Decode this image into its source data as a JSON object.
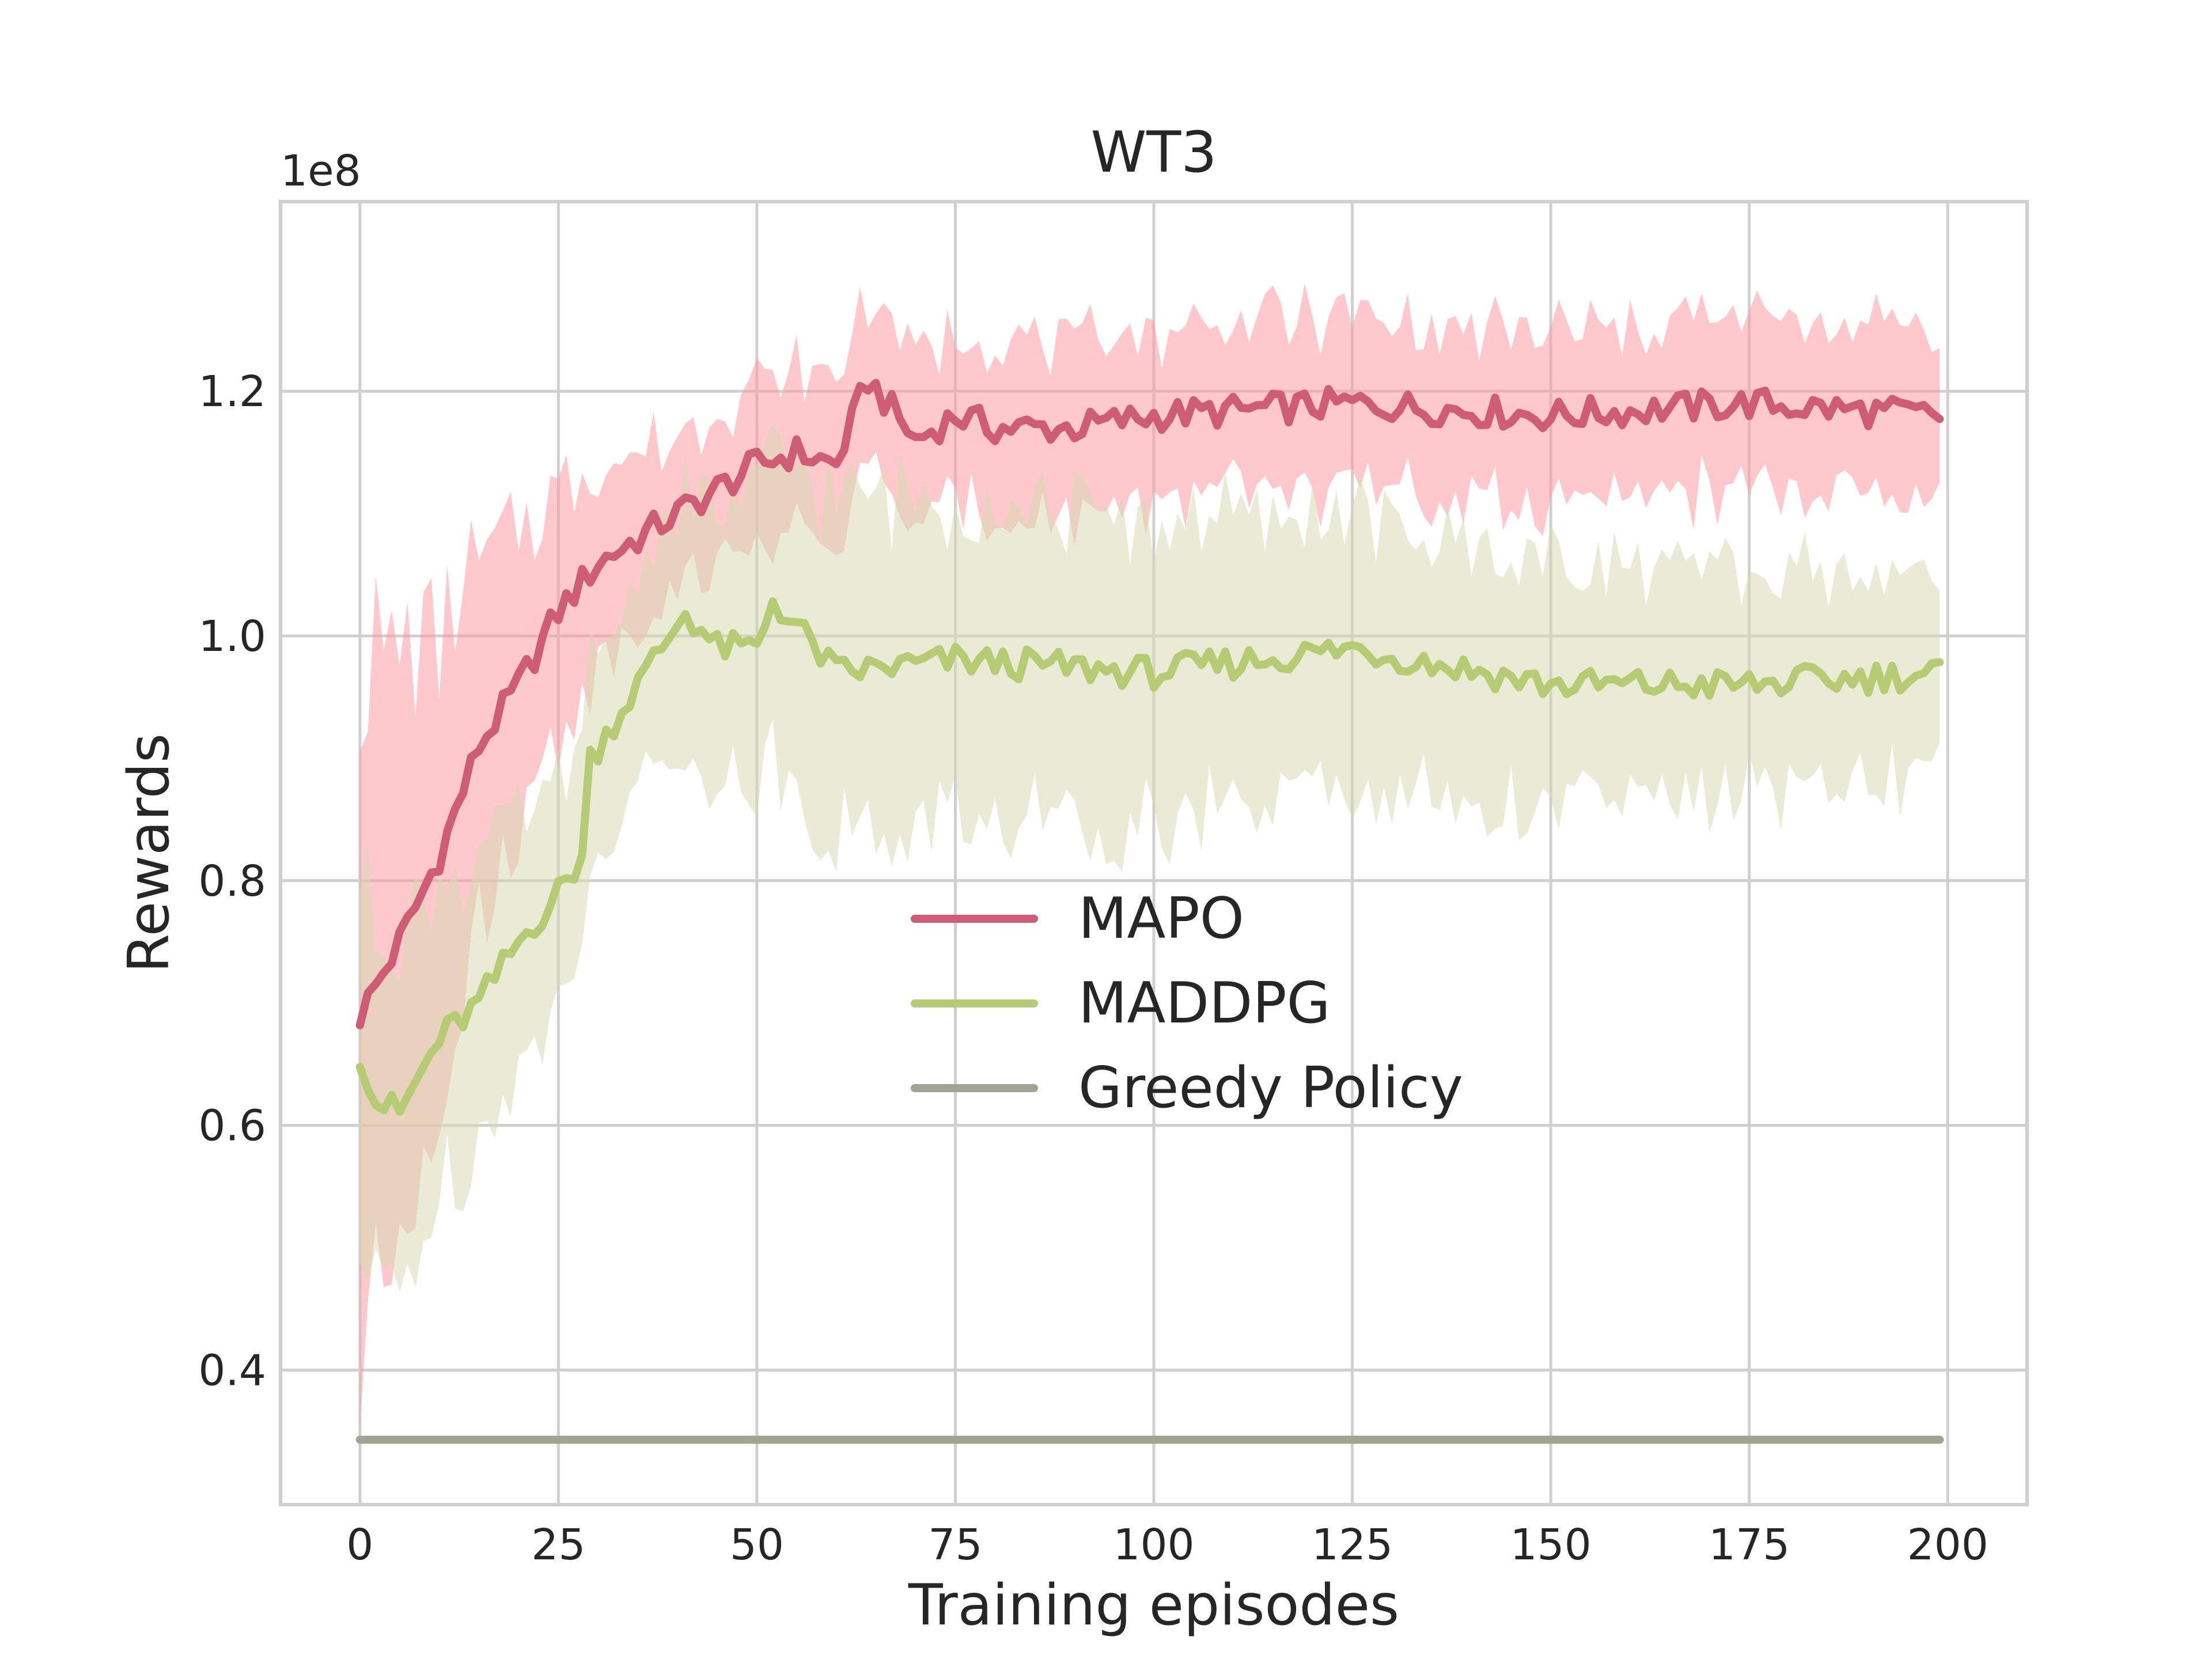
{
  "chart_data": {
    "type": "line",
    "title": "WT3",
    "xlabel": "Training episodes",
    "ylabel": "Rewards",
    "y_scale_label": "1e8",
    "xlim": [
      -10,
      210
    ],
    "ylim": [
      0.29,
      1.355
    ],
    "xticks": [
      0,
      25,
      50,
      75,
      100,
      125,
      150,
      175,
      200
    ],
    "yticks": [
      0.4,
      0.6,
      0.8,
      1.0,
      1.2
    ],
    "ytick_labels": [
      "0.4",
      "0.6",
      "0.8",
      "1.0",
      "1.2"
    ],
    "grid": true,
    "legend_position": "center",
    "series": [
      {
        "name": "MAPO",
        "color": "#cd5c74",
        "band_color": "#ff9aa2",
        "points": [
          [
            0,
            0.69
          ],
          [
            5,
            0.75
          ],
          [
            10,
            0.82
          ],
          [
            15,
            0.91
          ],
          [
            20,
            0.96
          ],
          [
            25,
            1.02
          ],
          [
            30,
            1.06
          ],
          [
            35,
            1.08
          ],
          [
            40,
            1.1
          ],
          [
            45,
            1.12
          ],
          [
            50,
            1.14
          ],
          [
            55,
            1.15
          ],
          [
            60,
            1.14
          ],
          [
            64,
            1.21
          ],
          [
            70,
            1.16
          ],
          [
            75,
            1.18
          ],
          [
            80,
            1.17
          ],
          [
            90,
            1.17
          ],
          [
            100,
            1.18
          ],
          [
            125,
            1.19
          ],
          [
            150,
            1.18
          ],
          [
            175,
            1.19
          ],
          [
            199,
            1.18
          ]
        ],
        "band_halfwidth": [
          [
            0,
            0.29
          ],
          [
            10,
            0.18
          ],
          [
            20,
            0.12
          ],
          [
            30,
            0.08
          ],
          [
            40,
            0.06
          ],
          [
            60,
            0.07
          ],
          [
            100,
            0.07
          ],
          [
            150,
            0.07
          ],
          [
            199,
            0.07
          ]
        ]
      },
      {
        "name": "MADDPG",
        "color": "#b5cc74",
        "band_color": "#d7dab0",
        "points": [
          [
            0,
            0.66
          ],
          [
            2,
            0.62
          ],
          [
            5,
            0.61
          ],
          [
            10,
            0.67
          ],
          [
            15,
            0.7
          ],
          [
            20,
            0.75
          ],
          [
            25,
            0.79
          ],
          [
            28,
            0.82
          ],
          [
            29,
            0.9
          ],
          [
            35,
            0.96
          ],
          [
            41,
            1.02
          ],
          [
            45,
            0.99
          ],
          [
            50,
            0.99
          ],
          [
            52,
            1.03
          ],
          [
            60,
            0.97
          ],
          [
            75,
            0.98
          ],
          [
            100,
            0.97
          ],
          [
            125,
            0.99
          ],
          [
            150,
            0.96
          ],
          [
            175,
            0.96
          ],
          [
            199,
            0.97
          ]
        ],
        "band_halfwidth": [
          [
            0,
            0.16
          ],
          [
            20,
            0.1
          ],
          [
            30,
            0.08
          ],
          [
            40,
            0.1
          ],
          [
            60,
            0.14
          ],
          [
            100,
            0.12
          ],
          [
            150,
            0.1
          ],
          [
            199,
            0.08
          ]
        ]
      },
      {
        "name": "Greedy Policy",
        "color": "#a3a293",
        "points": [
          [
            0,
            0.343
          ],
          [
            199,
            0.343
          ]
        ]
      }
    ]
  }
}
